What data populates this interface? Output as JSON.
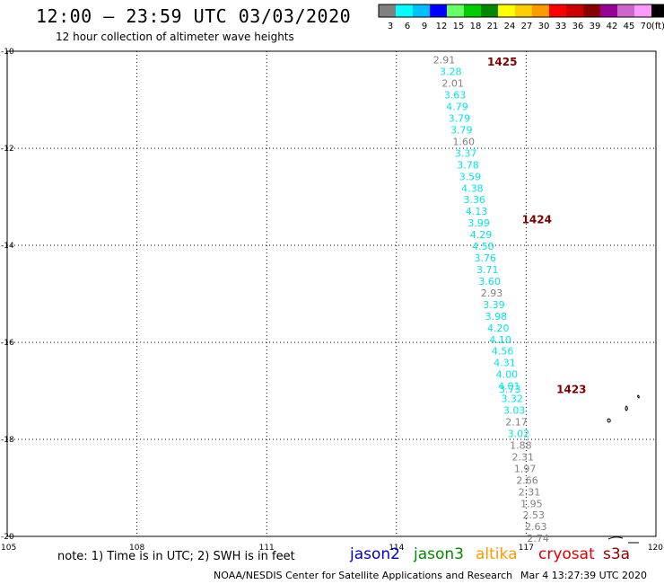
{
  "header": {
    "title": "12:00 – 23:59 UTC 03/03/2020",
    "subtitle": "12 hour collection of altimeter wave heights"
  },
  "legend": {
    "unit": "(ft)",
    "bins": [
      {
        "label": "3",
        "color": "#808080"
      },
      {
        "label": "6",
        "color": "#00ffff"
      },
      {
        "label": "9",
        "color": "#00bfff"
      },
      {
        "label": "12",
        "color": "#0000ff"
      },
      {
        "label": "15",
        "color": "#66ff66"
      },
      {
        "label": "18",
        "color": "#00cc00"
      },
      {
        "label": "21",
        "color": "#008800"
      },
      {
        "label": "24",
        "color": "#ffff00"
      },
      {
        "label": "27",
        "color": "#ffcc00"
      },
      {
        "label": "30",
        "color": "#ff9900"
      },
      {
        "label": "33",
        "color": "#ff0000"
      },
      {
        "label": "36",
        "color": "#cc0000"
      },
      {
        "label": "39",
        "color": "#880000"
      },
      {
        "label": "42",
        "color": "#990099"
      },
      {
        "label": "45",
        "color": "#cc66cc"
      },
      {
        "label": "70",
        "color": "#ff99ff"
      },
      {
        "label": "",
        "color": "#000000"
      }
    ]
  },
  "chart_data": {
    "type": "scatter",
    "title": "12:00 – 23:59 UTC 03/03/2020",
    "subtitle": "12 hour collection of altimeter wave heights",
    "xlim": [
      105,
      120
    ],
    "ylim": [
      -20,
      -10
    ],
    "xticks": [
      "105",
      "108",
      "111",
      "114",
      "117",
      "120"
    ],
    "yticks": [
      "-10",
      "-12",
      "-14",
      "-16",
      "-18",
      "-20"
    ],
    "grid": true,
    "track_labels": [
      {
        "text": "1425",
        "lon": 116.1,
        "lat": -10.2,
        "color": "#7f0000"
      },
      {
        "text": "1424",
        "lon": 116.9,
        "lat": -13.45,
        "color": "#7f0000"
      },
      {
        "text": "1423",
        "lon": 117.7,
        "lat": -16.95,
        "color": "#7f0000"
      }
    ],
    "points": [
      {
        "lon": 114.85,
        "lat": -10.18,
        "value": "2.91",
        "color": "#808080"
      },
      {
        "lon": 115.0,
        "lat": -10.42,
        "value": "3.28",
        "color": "#00e5e5"
      },
      {
        "lon": 115.05,
        "lat": -10.66,
        "value": "2.01",
        "color": "#808080"
      },
      {
        "lon": 115.1,
        "lat": -10.9,
        "value": "3.63",
        "color": "#00e5e5"
      },
      {
        "lon": 115.15,
        "lat": -11.14,
        "value": "4.79",
        "color": "#00e5e5"
      },
      {
        "lon": 115.2,
        "lat": -11.38,
        "value": "3.79",
        "color": "#00e5e5"
      },
      {
        "lon": 115.25,
        "lat": -11.62,
        "value": "3.79",
        "color": "#00e5e5"
      },
      {
        "lon": 115.3,
        "lat": -11.86,
        "value": "1.60",
        "color": "#808080"
      },
      {
        "lon": 115.35,
        "lat": -12.1,
        "value": "3.37",
        "color": "#00e5e5"
      },
      {
        "lon": 115.4,
        "lat": -12.34,
        "value": "3.78",
        "color": "#00e5e5"
      },
      {
        "lon": 115.45,
        "lat": -12.58,
        "value": "3.59",
        "color": "#00e5e5"
      },
      {
        "lon": 115.5,
        "lat": -12.82,
        "value": "4.38",
        "color": "#00e5e5"
      },
      {
        "lon": 115.55,
        "lat": -13.06,
        "value": "3.36",
        "color": "#00e5e5"
      },
      {
        "lon": 115.6,
        "lat": -13.3,
        "value": "4.13",
        "color": "#00e5e5"
      },
      {
        "lon": 115.65,
        "lat": -13.54,
        "value": "3.99",
        "color": "#00e5e5"
      },
      {
        "lon": 115.7,
        "lat": -13.78,
        "value": "4.29",
        "color": "#00e5e5"
      },
      {
        "lon": 115.75,
        "lat": -14.02,
        "value": "4.50",
        "color": "#00e5e5"
      },
      {
        "lon": 115.8,
        "lat": -14.26,
        "value": "3.76",
        "color": "#00e5e5"
      },
      {
        "lon": 115.85,
        "lat": -14.5,
        "value": "3.71",
        "color": "#00e5e5"
      },
      {
        "lon": 115.9,
        "lat": -14.74,
        "value": "3.60",
        "color": "#00e5e5"
      },
      {
        "lon": 115.95,
        "lat": -14.98,
        "value": "2.93",
        "color": "#808080"
      },
      {
        "lon": 116.0,
        "lat": -15.22,
        "value": "3.39",
        "color": "#00e5e5"
      },
      {
        "lon": 116.05,
        "lat": -15.46,
        "value": "3.98",
        "color": "#00e5e5"
      },
      {
        "lon": 116.1,
        "lat": -15.7,
        "value": "4.20",
        "color": "#00e5e5"
      },
      {
        "lon": 116.15,
        "lat": -15.94,
        "value": "4.10",
        "color": "#00e5e5"
      },
      {
        "lon": 116.2,
        "lat": -16.18,
        "value": "4.56",
        "color": "#00e5e5"
      },
      {
        "lon": 116.25,
        "lat": -16.42,
        "value": "4.31",
        "color": "#00e5e5"
      },
      {
        "lon": 116.3,
        "lat": -16.66,
        "value": "4.00",
        "color": "#00e5e5"
      },
      {
        "lon": 116.35,
        "lat": -16.9,
        "value": "4.01",
        "color": "#00e5e5"
      },
      {
        "lon": 116.37,
        "lat": -16.96,
        "value": "3.73",
        "color": "#00e5e5"
      },
      {
        "lon": 116.42,
        "lat": -17.16,
        "value": "3.32",
        "color": "#00e5e5"
      },
      {
        "lon": 116.47,
        "lat": -17.4,
        "value": "3.03",
        "color": "#00e5e5"
      },
      {
        "lon": 116.52,
        "lat": -17.64,
        "value": "2.17",
        "color": "#808080"
      },
      {
        "lon": 116.57,
        "lat": -17.88,
        "value": "3.02",
        "color": "#00e5e5"
      },
      {
        "lon": 116.62,
        "lat": -18.12,
        "value": "1.88",
        "color": "#808080"
      },
      {
        "lon": 116.67,
        "lat": -18.36,
        "value": "2.31",
        "color": "#808080"
      },
      {
        "lon": 116.72,
        "lat": -18.6,
        "value": "1.97",
        "color": "#808080"
      },
      {
        "lon": 116.77,
        "lat": -18.84,
        "value": "2.66",
        "color": "#808080"
      },
      {
        "lon": 116.82,
        "lat": -19.08,
        "value": "2.31",
        "color": "#808080"
      },
      {
        "lon": 116.87,
        "lat": -19.32,
        "value": "1.95",
        "color": "#808080"
      },
      {
        "lon": 116.92,
        "lat": -19.56,
        "value": "2.53",
        "color": "#808080"
      },
      {
        "lon": 116.97,
        "lat": -19.8,
        "value": "2.63",
        "color": "#808080"
      },
      {
        "lon": 117.02,
        "lat": -20.04,
        "value": "2.74",
        "color": "#808080"
      }
    ]
  },
  "footer": {
    "note": "note: 1) Time is in UTC; 2) SWH is in feet",
    "satellites": [
      {
        "name": "jason2",
        "color": "#0000cc"
      },
      {
        "name": "jason3",
        "color": "#008800"
      },
      {
        "name": "altika",
        "color": "#ff9900"
      },
      {
        "name": "cryosat",
        "color": "#dd0000"
      },
      {
        "name": "s3a",
        "color": "#880000"
      }
    ],
    "credit": "NOAA/NESDIS Center for Satellite Applications and Research",
    "timestamp": "Mar  4 13:27:39 UTC 2020"
  }
}
